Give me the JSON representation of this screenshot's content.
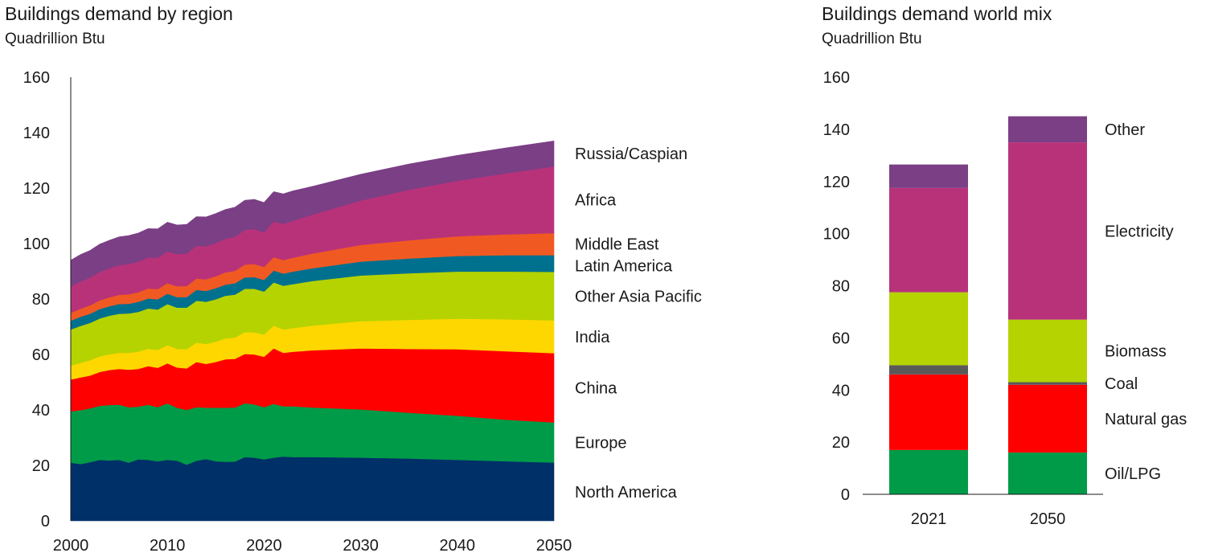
{
  "chart_data": [
    {
      "type": "area",
      "title": "Buildings demand by region",
      "subtitle": "Quadrillion Btu",
      "stacked": true,
      "xlim": [
        2000,
        2050
      ],
      "ylim": [
        0,
        160
      ],
      "x_ticks": [
        2000,
        2010,
        2020,
        2030,
        2040,
        2050
      ],
      "y_ticks": [
        0,
        20,
        40,
        60,
        80,
        100,
        120,
        140,
        160
      ],
      "x": [
        2000,
        2001,
        2002,
        2003,
        2004,
        2005,
        2006,
        2007,
        2008,
        2009,
        2010,
        2011,
        2012,
        2013,
        2014,
        2015,
        2016,
        2017,
        2018,
        2019,
        2020,
        2021,
        2022,
        2023,
        2025,
        2030,
        2035,
        2040,
        2045,
        2050
      ],
      "series": [
        {
          "name": "North America",
          "color": "#003068",
          "values": [
            21,
            20.5,
            21.2,
            22,
            21.8,
            22,
            21,
            22.2,
            22,
            21.5,
            22,
            21.7,
            20.3,
            21.7,
            22.3,
            21.5,
            21.3,
            21.4,
            23,
            22.8,
            22.2,
            22.8,
            23.2,
            23,
            23,
            22.8,
            22.5,
            22,
            21.5,
            21
          ]
        },
        {
          "name": "Europe",
          "color": "#009B48",
          "values": [
            18.5,
            19.4,
            19.4,
            19.5,
            20,
            19.9,
            20,
            19,
            19.9,
            19.5,
            20.4,
            19.1,
            19.7,
            19.3,
            18.5,
            19.3,
            19.5,
            19.5,
            19.4,
            19.2,
            18.8,
            19.4,
            18.1,
            18.3,
            17.9,
            17.4,
            16.5,
            15.9,
            15,
            14.5
          ]
        },
        {
          "name": "China",
          "color": "#FF0000",
          "values": [
            11.5,
            11.8,
            11.8,
            12.2,
            12.6,
            12.9,
            13.5,
            13.6,
            13.9,
            14.2,
            14.4,
            14.5,
            15,
            16.3,
            15.8,
            16.5,
            17.5,
            17.5,
            17.8,
            18,
            18.2,
            20,
            19.3,
            19.7,
            20.6,
            22,
            23,
            24,
            24.7,
            25
          ]
        },
        {
          "name": "India",
          "color": "#FFD700",
          "values": [
            5,
            5.3,
            5.5,
            5.6,
            5.7,
            5.8,
            6.1,
            6.2,
            6.3,
            6.4,
            6.6,
            6.7,
            6.9,
            7,
            7.2,
            7.3,
            7.5,
            7.7,
            7.9,
            8,
            8,
            8.2,
            8.4,
            8.5,
            8.9,
            9.8,
            10.5,
            11,
            11.5,
            11.8
          ]
        },
        {
          "name": "Other Asia Pacific",
          "color": "#B5D300",
          "values": [
            13,
            13.3,
            13.5,
            13.7,
            13.9,
            14.1,
            14.2,
            14.4,
            14.5,
            14.6,
            14.8,
            14.9,
            15,
            15.1,
            15.2,
            15.3,
            15.4,
            15.5,
            15.6,
            15.7,
            15.5,
            15.6,
            15.8,
            15.9,
            16.1,
            16.5,
            16.8,
            17,
            17.2,
            17.5
          ]
        },
        {
          "name": "Latin America",
          "color": "#00708F",
          "values": [
            3.2,
            3.3,
            3.3,
            3.4,
            3.4,
            3.5,
            3.5,
            3.6,
            3.6,
            3.7,
            3.7,
            3.8,
            3.8,
            3.9,
            3.9,
            4,
            4,
            4.1,
            4.1,
            4.2,
            4.2,
            4.3,
            4.4,
            4.5,
            4.6,
            5,
            5.3,
            5.6,
            5.9,
            6
          ]
        },
        {
          "name": "Middle East",
          "color": "#F05A22",
          "values": [
            2.8,
            2.9,
            3,
            3.1,
            3.2,
            3.3,
            3.4,
            3.5,
            3.6,
            3.7,
            3.8,
            3.9,
            4,
            4.1,
            4.2,
            4.3,
            4.4,
            4.5,
            4.6,
            4.7,
            4.7,
            4.8,
            4.9,
            5,
            5.3,
            6,
            6.6,
            7.1,
            7.5,
            8
          ]
        },
        {
          "name": "Africa",
          "color": "#B8327A",
          "values": [
            9.5,
            9.8,
            10,
            10.3,
            10.5,
            10.7,
            10.9,
            11,
            11.2,
            11.3,
            11.5,
            11.6,
            11.7,
            11.8,
            11.9,
            12,
            12.1,
            12.3,
            12.5,
            12.6,
            12.5,
            12.8,
            13,
            13.3,
            14,
            16,
            18.2,
            20,
            22,
            24
          ]
        },
        {
          "name": "Russia/Caspian",
          "color": "#7B3F85",
          "values": [
            9.5,
            9.7,
            9.8,
            10,
            10.1,
            10.2,
            10.3,
            10.3,
            10.4,
            10.4,
            10.5,
            10.5,
            10.5,
            10.5,
            10.6,
            10.6,
            10.6,
            10.6,
            10.7,
            10.7,
            10.7,
            10.8,
            10.8,
            10.8,
            10.2,
            9.5,
            9.3,
            9.2,
            9.2,
            9.2
          ]
        }
      ],
      "legend": [
        "Russia/Caspian",
        "Africa",
        "Middle East",
        "Latin America",
        "Other Asia Pacific",
        "India",
        "China",
        "Europe",
        "North America"
      ]
    },
    {
      "type": "bar",
      "stacked": true,
      "title": "Buildings demand world mix",
      "subtitle": "Quadrillion Btu",
      "ylim": [
        0,
        160
      ],
      "y_ticks": [
        0,
        20,
        40,
        60,
        80,
        100,
        120,
        140,
        160
      ],
      "categories": [
        "2021",
        "2050"
      ],
      "series": [
        {
          "name": "Oil/LPG",
          "color": "#009B48",
          "values": [
            17,
            16
          ]
        },
        {
          "name": "Natural gas",
          "color": "#FF0000",
          "values": [
            29,
            26
          ]
        },
        {
          "name": "Coal",
          "color": "#595959",
          "values": [
            3.5,
            1
          ]
        },
        {
          "name": "Biomass",
          "color": "#B5D300",
          "values": [
            28,
            24
          ]
        },
        {
          "name": "Electricity",
          "color": "#B8327A",
          "values": [
            40,
            68
          ]
        },
        {
          "name": "Other",
          "color": "#7B3F85",
          "values": [
            9,
            10
          ]
        }
      ],
      "legend": [
        "Other",
        "Electricity",
        "Biomass",
        "Coal",
        "Natural gas",
        "Oil/LPG"
      ]
    }
  ]
}
